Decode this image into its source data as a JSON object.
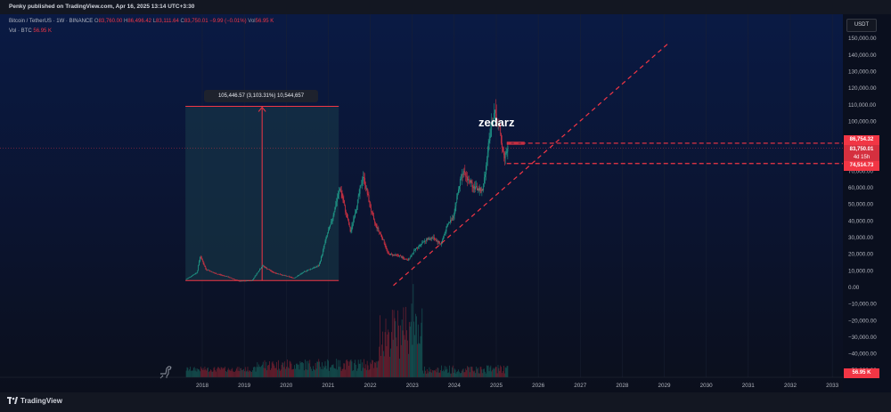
{
  "header": {
    "published": "Penky published on TradingView.com, Apr 16, 2025 13:14 UTC+3:30"
  },
  "legend": {
    "symbol": "Bitcoin / TetherUS · 1W · BINANCE",
    "o_label": "O",
    "o": "83,760.00",
    "h_label": "H",
    "h": "86,496.42",
    "l_label": "L",
    "l": "83,111.64",
    "c_label": "C",
    "c": "83,750.01",
    "change": "−9.99 (−0.01%)",
    "vol_label": "Vol",
    "vol": "56.95 K",
    "vol_row_label": "Vol · BTC",
    "vol_row_value": "56.95 K"
  },
  "axis": {
    "currency": "USDT"
  },
  "tags": {
    "upper": "86,754.32",
    "price": "83,750.01",
    "countdown": "4d 15h",
    "lower": "74,514.73",
    "volume": "56.95 K"
  },
  "measure": {
    "label": "105,446.57 (3,103.31%) 10,544,657"
  },
  "watermark": "zedarz",
  "branding": "TradingView",
  "colors": {
    "up": "#22ab94",
    "down": "#f23645",
    "accent": "#f23645",
    "measure_fill": "#1a3d4a"
  },
  "chart_data": {
    "type": "candlestick",
    "symbol": "BTCUSDT",
    "interval": "1W",
    "x_labels": [
      "2018",
      "2019",
      "2020",
      "2021",
      "2022",
      "2023",
      "2024",
      "2025",
      "2026",
      "2027",
      "2028",
      "2029",
      "2030",
      "2031",
      "2032",
      "2033"
    ],
    "y_labels": [
      "150,000.00",
      "140,000.00",
      "130,000.00",
      "120,000.00",
      "110,000.00",
      "100,000.00",
      "90,000.00",
      "80,000.00",
      "70,000.00",
      "60,000.00",
      "50,000.00",
      "40,000.00",
      "30,000.00",
      "20,000.00",
      "10,000.00",
      "0.00",
      "−10,000.00",
      "−20,000.00",
      "−30,000.00",
      "−40,000.00",
      "−50,000.00"
    ],
    "ylim": [
      -55000,
      155000
    ],
    "xlim": [
      2017.2,
      2033.5
    ],
    "price_path": [
      [
        2017.6,
        4200
      ],
      [
        2017.9,
        9000
      ],
      [
        2017.97,
        19000
      ],
      [
        2018.1,
        11000
      ],
      [
        2018.3,
        8500
      ],
      [
        2018.6,
        6500
      ],
      [
        2018.9,
        3600
      ],
      [
        2019.2,
        4000
      ],
      [
        2019.45,
        13000
      ],
      [
        2019.7,
        9000
      ],
      [
        2019.95,
        7200
      ],
      [
        2020.2,
        5500
      ],
      [
        2020.5,
        10000
      ],
      [
        2020.8,
        13000
      ],
      [
        2020.95,
        28000
      ],
      [
        2021.1,
        40000
      ],
      [
        2021.3,
        60000
      ],
      [
        2021.55,
        33000
      ],
      [
        2021.85,
        67000
      ],
      [
        2022.1,
        40000
      ],
      [
        2022.3,
        30000
      ],
      [
        2022.45,
        20000
      ],
      [
        2022.7,
        19000
      ],
      [
        2022.9,
        16000
      ],
      [
        2023.1,
        23000
      ],
      [
        2023.3,
        28000
      ],
      [
        2023.5,
        30000
      ],
      [
        2023.7,
        26000
      ],
      [
        2023.85,
        37000
      ],
      [
        2024.0,
        43000
      ],
      [
        2024.2,
        70000
      ],
      [
        2024.5,
        60000
      ],
      [
        2024.7,
        58000
      ],
      [
        2024.85,
        90000
      ],
      [
        2024.97,
        106000
      ],
      [
        2025.1,
        95000
      ],
      [
        2025.2,
        78000
      ],
      [
        2025.29,
        83750
      ]
    ],
    "levels": {
      "upper": 86754.32,
      "last": 83750.01,
      "lower": 74514.73
    },
    "measure_range": {
      "x": [
        2017.6,
        2021.25
      ],
      "y": [
        4000,
        109000
      ]
    },
    "trendline": [
      [
        2022.55,
        1000
      ],
      [
        2029.1,
        147000
      ]
    ],
    "volume_unit": "K",
    "last_volume": 56.95
  }
}
